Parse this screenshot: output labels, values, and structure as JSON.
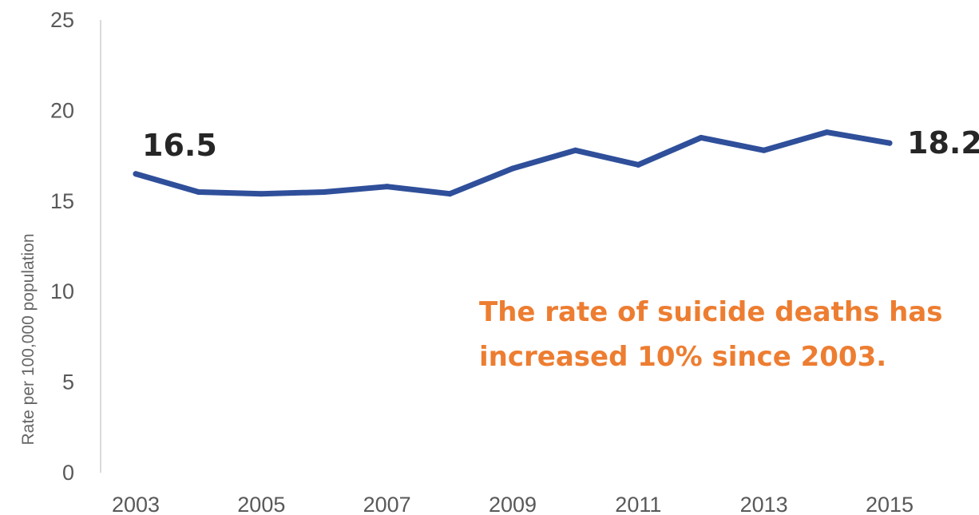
{
  "chart_data": {
    "type": "line",
    "x": [
      2003,
      2004,
      2005,
      2006,
      2007,
      2008,
      2009,
      2010,
      2011,
      2012,
      2013,
      2014,
      2015
    ],
    "series": [
      {
        "values": [
          16.5,
          15.5,
          15.4,
          15.5,
          15.8,
          15.4,
          16.8,
          17.8,
          17.0,
          18.5,
          17.8,
          18.8,
          18.2
        ]
      }
    ],
    "xticks": [
      "2003",
      "2005",
      "2007",
      "2009",
      "2011",
      "2013",
      "2015"
    ],
    "yticks": [
      "0",
      "5",
      "10",
      "15",
      "20",
      "25"
    ],
    "ylim": [
      0,
      25
    ],
    "xlim": [
      2003,
      2015
    ],
    "ylabel": "Rate per 100,000 population",
    "xlabel": "",
    "title": "",
    "grid": false,
    "data_labels": [
      {
        "x": 2003,
        "text": "16.5"
      },
      {
        "x": 2015,
        "text": "18.2"
      }
    ],
    "annotation": [
      "The rate of suicide deaths has",
      "increased 10% since 2003."
    ],
    "colors": {
      "line": "#2F4F9A",
      "annotation": "#ED7D31",
      "axis": "#D9D9D9"
    }
  }
}
